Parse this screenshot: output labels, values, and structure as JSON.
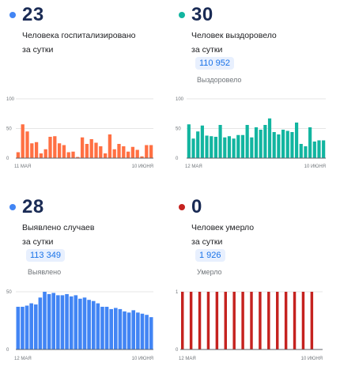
{
  "panels": {
    "hosp": {
      "value": "23",
      "caption_line1": "Человека госпитализировано",
      "caption_line2": "за сутки",
      "dot_color": "#4285f4"
    },
    "rec": {
      "value": "30",
      "caption_line1": "Человек выздоровело",
      "caption_line2": "за сутки",
      "total": "110 952",
      "total_label": "Выздоровело",
      "dot_color": "#12b5a0"
    },
    "case": {
      "value": "28",
      "caption_line1": "Выявлено случаев",
      "caption_line2": "за сутки",
      "total": "113 349",
      "total_label": "Выявлено",
      "dot_color": "#4285f4"
    },
    "death": {
      "value": "0",
      "caption_line1": "Человек умерло",
      "caption_line2": "за сутки",
      "total": "1 926",
      "total_label": "Умерло",
      "dot_color": "#c5221f"
    }
  },
  "chart_data": [
    {
      "type": "bar",
      "color": "#ff7043",
      "ylim": [
        0,
        100
      ],
      "yticks": [
        "100",
        "50",
        "0"
      ],
      "x_start": "11 МАЯ",
      "x_end": "10 ИЮНЯ",
      "values": [
        10,
        57,
        45,
        25,
        27,
        8,
        15,
        36,
        37,
        25,
        22,
        10,
        11,
        2,
        35,
        24,
        32,
        26,
        20,
        8,
        40,
        15,
        24,
        20,
        11,
        19,
        14,
        3,
        22,
        22
      ]
    },
    {
      "type": "bar",
      "color": "#12b5a0",
      "ylim": [
        0,
        100
      ],
      "yticks": [
        "100",
        "50",
        "0"
      ],
      "x_start": "12 МАЯ",
      "x_end": "10 ИЮНЯ",
      "values": [
        57,
        33,
        45,
        55,
        38,
        37,
        36,
        56,
        35,
        37,
        33,
        39,
        39,
        56,
        35,
        52,
        48,
        56,
        67,
        44,
        40,
        48,
        46,
        44,
        60,
        24,
        20,
        52,
        28,
        30,
        30
      ]
    },
    {
      "type": "bar",
      "color": "#4285f4",
      "ylim": [
        0,
        50
      ],
      "yticks": [
        "50",
        "0"
      ],
      "x_start": "12 МАЯ",
      "x_end": "10 ИЮНЯ",
      "values": [
        37,
        37,
        38,
        40,
        39,
        45,
        50,
        48,
        49,
        47,
        47,
        48,
        46,
        47,
        44,
        45,
        43,
        42,
        40,
        37,
        37,
        35,
        36,
        35,
        33,
        32,
        34,
        32,
        31,
        30,
        28
      ]
    },
    {
      "type": "bar",
      "color": "#c5221f",
      "ylim": [
        0,
        1
      ],
      "yticks": [
        "1",
        "0"
      ],
      "x_start": "12 МАЯ",
      "x_end": "10 ИЮНЯ",
      "values": [
        1,
        0,
        1,
        0,
        1,
        0,
        1,
        0,
        1,
        0,
        1,
        0,
        1,
        0,
        1,
        0,
        1,
        0,
        1,
        0,
        1,
        0,
        1,
        0,
        1,
        0,
        1,
        0,
        1,
        0,
        1,
        0,
        0
      ]
    }
  ]
}
